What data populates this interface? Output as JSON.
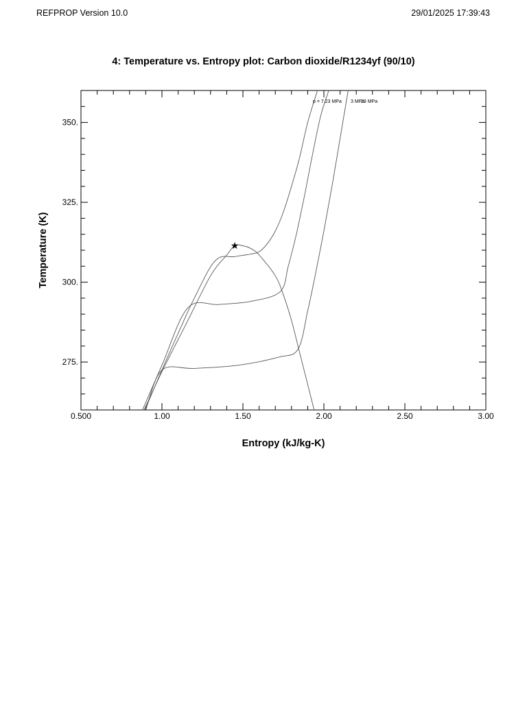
{
  "header": {
    "app_title": "REFPROP Version 10.0",
    "timestamp": "29/01/2025 17:39:43"
  },
  "chart_data": {
    "type": "line",
    "title": "4: Temperature vs. Entropy plot: Carbon dioxide/R1234yf (90/10)",
    "xlabel": "Entropy (kJ/kg-K)",
    "ylabel": "Temperature (K)",
    "xlim": [
      0.5,
      3.0
    ],
    "ylim": [
      260,
      360
    ],
    "x_ticks": [
      0.5,
      1.0,
      1.5,
      2.0,
      2.5,
      3.0
    ],
    "x_tick_labels": [
      "0.500",
      "1.00",
      "1.50",
      "2.00",
      "2.50",
      "3.00"
    ],
    "y_ticks": [
      275,
      300,
      325,
      350
    ],
    "y_tick_labels": [
      "275.",
      "300.",
      "325.",
      "350."
    ],
    "grid": false,
    "legend": "none",
    "line_color": "#555555",
    "critical_point": {
      "s": 1.45,
      "T": 311.5,
      "marker": "star"
    },
    "series": [
      {
        "points": [
          [
            0.89,
            260
          ],
          [
            1.0,
            272
          ],
          [
            1.15,
            287
          ],
          [
            1.3,
            302
          ],
          [
            1.4,
            308.5
          ],
          [
            1.45,
            311.5
          ],
          [
            1.5,
            311.4
          ],
          [
            1.55,
            310.5
          ],
          [
            1.6,
            308.5
          ],
          [
            1.7,
            302
          ],
          [
            1.75,
            296
          ],
          [
            1.8,
            288
          ],
          [
            1.85,
            278
          ],
          [
            1.9,
            268
          ],
          [
            1.94,
            260
          ]
        ]
      },
      {
        "label": "p = 7.23 MPa",
        "points": [
          [
            0.895,
            260
          ],
          [
            1.0,
            272.5
          ],
          [
            1.1,
            284
          ],
          [
            1.2,
            295
          ],
          [
            1.33,
            306.8
          ],
          [
            1.45,
            308
          ],
          [
            1.55,
            308.8
          ],
          [
            1.6,
            309.5
          ],
          [
            1.65,
            312
          ],
          [
            1.7,
            316
          ],
          [
            1.75,
            322
          ],
          [
            1.8,
            330
          ],
          [
            1.85,
            339
          ],
          [
            1.9,
            350
          ],
          [
            1.96,
            360
          ]
        ]
      },
      {
        "label": "3 MPa",
        "points": [
          [
            0.88,
            260
          ],
          [
            1.0,
            274
          ],
          [
            1.16,
            292
          ],
          [
            1.35,
            293
          ],
          [
            1.55,
            294
          ],
          [
            1.73,
            297
          ],
          [
            1.78,
            305
          ],
          [
            1.83,
            315
          ],
          [
            1.88,
            327
          ],
          [
            1.93,
            340
          ],
          [
            1.98,
            352
          ],
          [
            2.03,
            360
          ]
        ]
      },
      {
        "label": "23 MPa",
        "points": [
          [
            0.9,
            260
          ],
          [
            1.0,
            272.5
          ],
          [
            1.2,
            273
          ],
          [
            1.47,
            274
          ],
          [
            1.72,
            276.5
          ],
          [
            1.84,
            279
          ],
          [
            1.9,
            291
          ],
          [
            1.95,
            303
          ],
          [
            2.0,
            316
          ],
          [
            2.05,
            330
          ],
          [
            2.1,
            345
          ],
          [
            2.15,
            360
          ]
        ]
      }
    ]
  }
}
